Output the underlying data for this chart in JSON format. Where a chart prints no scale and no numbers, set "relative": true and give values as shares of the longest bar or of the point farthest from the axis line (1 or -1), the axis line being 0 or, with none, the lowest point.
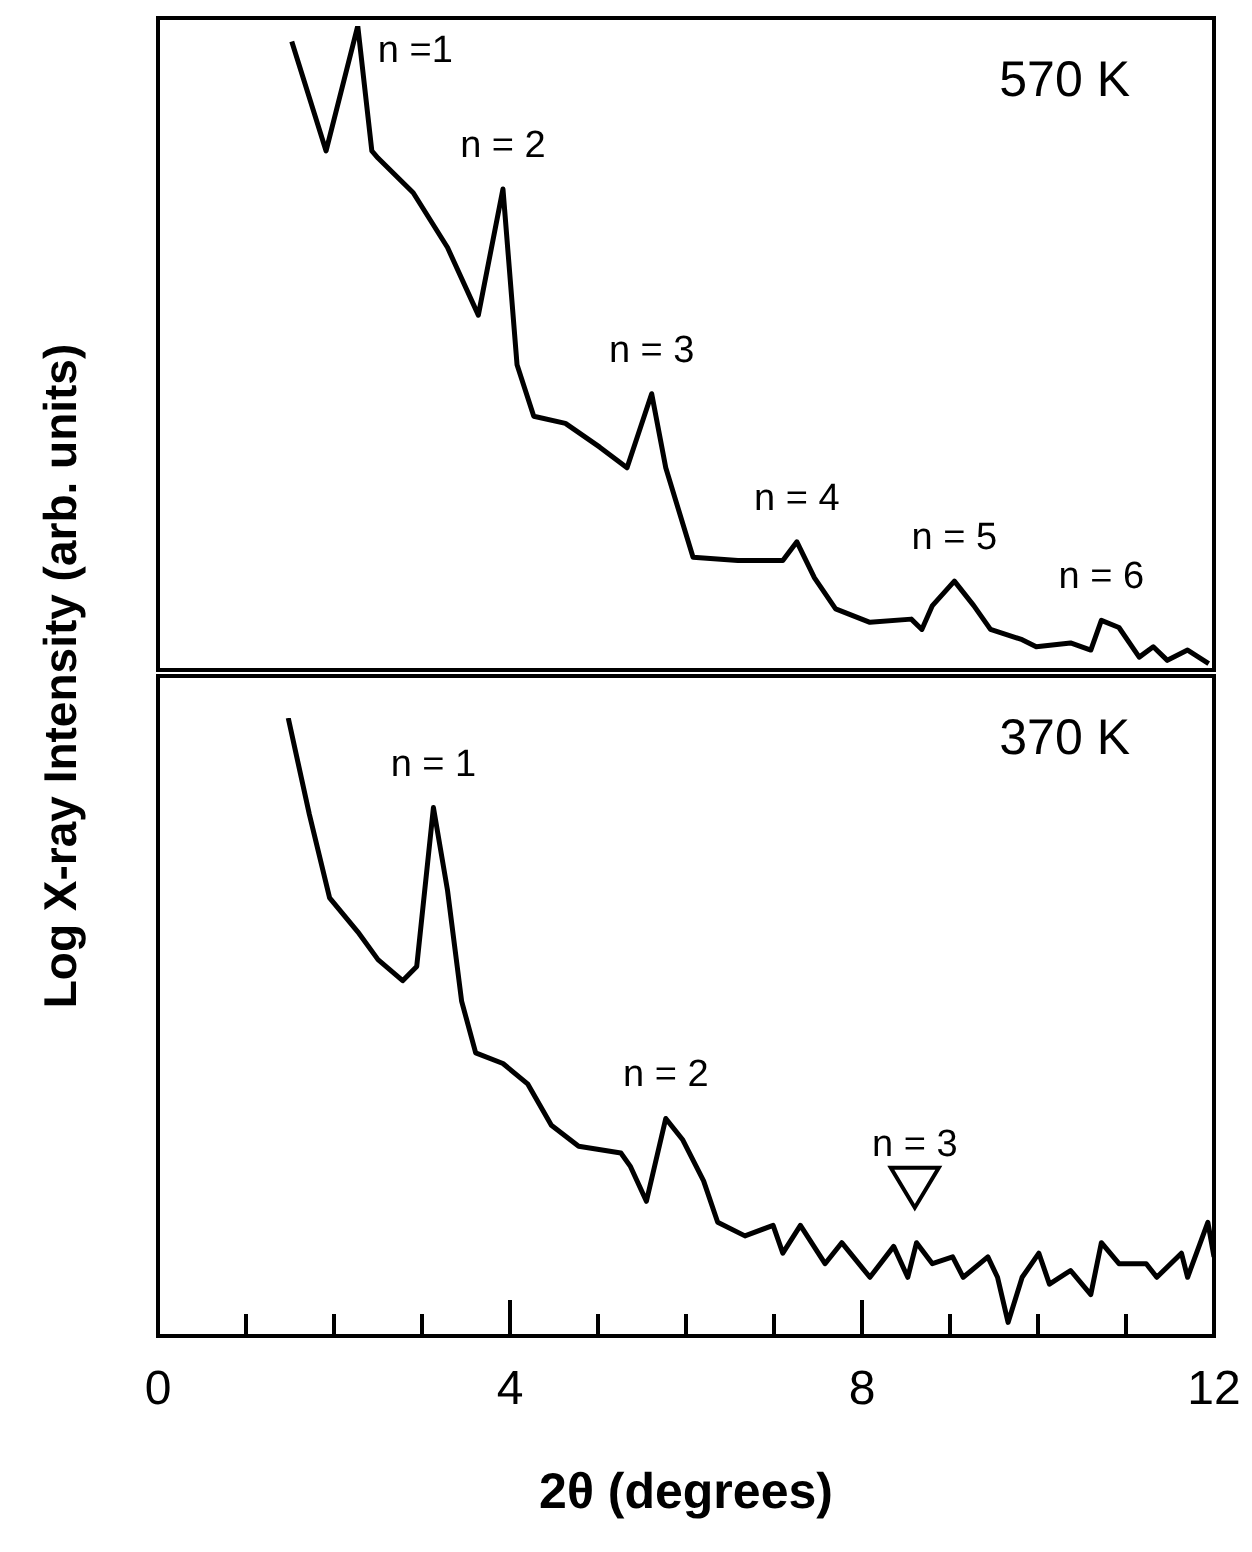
{
  "chart_data": [
    {
      "type": "line",
      "title": "570 K",
      "ylabel": "Log X-ray Intensity (arb. units)",
      "relative": true,
      "xlim": [
        0,
        12
      ],
      "tick_labels": false,
      "x": [
        1.52,
        1.91,
        2.27,
        2.43,
        2.5,
        2.9,
        3.29,
        3.64,
        3.92,
        4.08,
        4.27,
        4.63,
        5.02,
        5.33,
        5.61,
        5.77,
        6.08,
        6.59,
        7.1,
        7.26,
        7.46,
        7.7,
        8.09,
        8.56,
        8.68,
        8.8,
        9.05,
        9.27,
        9.46,
        9.82,
        9.98,
        10.37,
        10.6,
        10.72,
        10.92,
        11.15,
        11.31,
        11.47,
        11.7,
        11.94
      ],
      "series": [
        {
          "color": "#000000",
          "values": [
            0.976,
            0.806,
            1.0,
            0.806,
            0.795,
            0.741,
            0.656,
            0.551,
            0.747,
            0.474,
            0.394,
            0.383,
            0.346,
            0.314,
            0.429,
            0.314,
            0.175,
            0.17,
            0.17,
            0.199,
            0.143,
            0.095,
            0.074,
            0.079,
            0.063,
            0.1,
            0.138,
            0.1,
            0.063,
            0.047,
            0.036,
            0.042,
            0.031,
            0.077,
            0.066,
            0.02,
            0.036,
            0.015,
            0.031,
            0.01
          ]
        }
      ],
      "annotations": [
        {
          "text": "n =1",
          "x": 2.27,
          "y": 1.0
        },
        {
          "text": "n = 2",
          "x": 3.92,
          "y": 0.747
        },
        {
          "text": "n = 3",
          "x": 5.61,
          "y": 0.429
        },
        {
          "text": "n = 4",
          "x": 7.26,
          "y": 0.199
        },
        {
          "text": "n = 5",
          "x": 9.05,
          "y": 0.138
        },
        {
          "text": "n = 6",
          "x": 10.72,
          "y": 0.077
        }
      ]
    },
    {
      "type": "line",
      "title": "370 K",
      "xlabel": "2θ (degrees)",
      "relative": true,
      "xlim": [
        0,
        12
      ],
      "tick_labels": "x",
      "xticks": [
        0,
        {
          "value": 1,
          "label": null
        },
        {
          "value": 2,
          "label": null
        },
        {
          "value": 3,
          "label": null
        },
        4,
        {
          "value": 5,
          "label": null
        },
        {
          "value": 6,
          "label": null
        },
        {
          "value": 7,
          "label": null
        },
        8,
        {
          "value": 9,
          "label": null
        },
        {
          "value": 10,
          "label": null
        },
        {
          "value": 11,
          "label": null
        },
        12
      ],
      "x": [
        1.48,
        1.72,
        1.95,
        2.27,
        2.5,
        2.78,
        2.94,
        3.13,
        3.29,
        3.45,
        3.61,
        3.92,
        4.2,
        4.47,
        4.78,
        5.26,
        5.37,
        5.55,
        5.77,
        5.96,
        6.2,
        6.36,
        6.67,
        6.99,
        7.1,
        7.3,
        7.58,
        7.77,
        8.09,
        8.36,
        8.52,
        8.62,
        8.8,
        9.03,
        9.15,
        9.43,
        9.54,
        9.66,
        9.82,
        10.01,
        10.13,
        10.37,
        10.6,
        10.72,
        10.92,
        11.23,
        11.35,
        11.63,
        11.7,
        11.93,
        12.0
      ],
      "series": [
        {
          "color": "#000000",
          "values": [
            1.0,
            0.844,
            0.709,
            0.654,
            0.609,
            0.575,
            0.598,
            0.855,
            0.721,
            0.542,
            0.458,
            0.441,
            0.408,
            0.341,
            0.307,
            0.296,
            0.274,
            0.218,
            0.352,
            0.318,
            0.251,
            0.184,
            0.162,
            0.179,
            0.134,
            0.179,
            0.117,
            0.151,
            0.095,
            0.145,
            0.095,
            0.151,
            0.117,
            0.128,
            0.095,
            0.128,
            0.095,
            0.022,
            0.095,
            0.134,
            0.084,
            0.106,
            0.067,
            0.151,
            0.117,
            0.117,
            0.095,
            0.134,
            0.095,
            0.184,
            0.128
          ]
        },
        {
          "type": "scatter",
          "color": "#000000",
          "x": [
            8.6
          ],
          "values": [
            0.24
          ]
        }
      ],
      "annotations": [
        {
          "text": "n = 1",
          "x": 3.13,
          "y": 0.855
        },
        {
          "text": "n = 2",
          "x": 5.77,
          "y": 0.352
        },
        {
          "text": "n = 3",
          "x": 8.6,
          "y": 0.24
        }
      ]
    }
  ]
}
